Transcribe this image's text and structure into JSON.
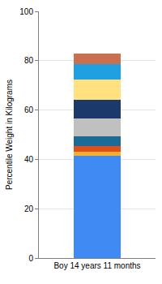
{
  "chart_data": {
    "type": "bar",
    "stacked": true,
    "y_label": "Percentile Weight in Kilograms",
    "categories": [
      "Boy 14 years 11 months"
    ],
    "series": [
      {
        "color": "#3f8bf3",
        "values": [
          41.5
        ]
      },
      {
        "color": "#f0b030",
        "values": [
          1.5
        ]
      },
      {
        "color": "#e04e1a",
        "values": [
          2.5
        ]
      },
      {
        "color": "#1c6b97",
        "values": [
          4
        ]
      },
      {
        "color": "#c0c0c0",
        "values": [
          7
        ]
      },
      {
        "color": "#1b3a6b",
        "values": [
          7.5
        ]
      },
      {
        "color": "#ffe27f",
        "values": [
          8.5
        ]
      },
      {
        "color": "#1fa0e0",
        "values": [
          6
        ]
      },
      {
        "color": "#c87050",
        "values": [
          4.5
        ]
      }
    ],
    "ylim": [
      0,
      100
    ],
    "yticks": [
      0,
      20,
      40,
      60,
      80,
      100
    ],
    "grid": true
  }
}
